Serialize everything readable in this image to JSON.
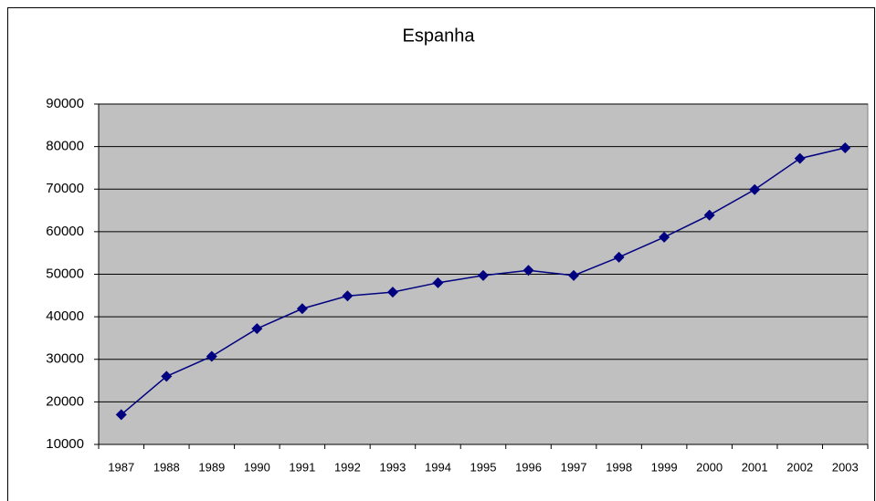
{
  "chart_data": {
    "type": "line",
    "title": "Espanha",
    "categories": [
      "1987",
      "1988",
      "1989",
      "1990",
      "1991",
      "1992",
      "1993",
      "1994",
      "1995",
      "1996",
      "1997",
      "1998",
      "1999",
      "2000",
      "2001",
      "2002",
      "2003"
    ],
    "series": [
      {
        "name": "Espanha",
        "color": "#000080",
        "values": [
          17000,
          26000,
          30700,
          37200,
          41900,
          44900,
          45800,
          48000,
          49700,
          50900,
          49700,
          54000,
          58700,
          63900,
          69900,
          77200,
          79700
        ]
      }
    ],
    "ylim": [
      10000,
      90000
    ],
    "yticks": [
      10000,
      20000,
      30000,
      40000,
      50000,
      60000,
      70000,
      80000,
      90000
    ],
    "grid": true,
    "plot_background": "#c0c0c0"
  }
}
